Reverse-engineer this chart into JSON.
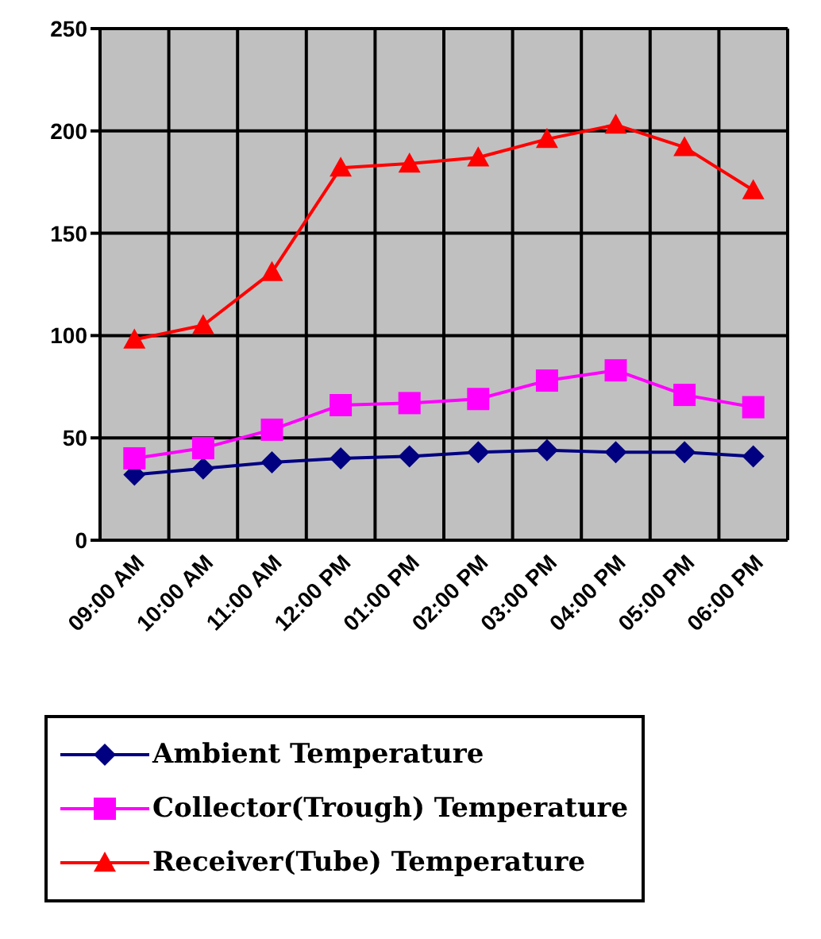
{
  "chart_data": {
    "type": "line",
    "categories": [
      "09:00 AM",
      "10:00 AM",
      "11:00 AM",
      "12:00 PM",
      "01:00 PM",
      "02:00 PM",
      "03:00 PM",
      "04:00 PM",
      "05:00 PM",
      "06:00 PM"
    ],
    "series": [
      {
        "name": "Ambient Temperature",
        "color": "#000080",
        "marker": "diamond",
        "values": [
          32,
          35,
          38,
          40,
          41,
          43,
          44,
          43,
          43,
          41
        ]
      },
      {
        "name": "Collector(Trough) Temperature",
        "color": "#ff00ff",
        "marker": "square",
        "values": [
          40,
          45,
          54,
          66,
          67,
          69,
          78,
          83,
          71,
          65
        ]
      },
      {
        "name": "Receiver(Tube) Temperature",
        "color": "#ff0000",
        "marker": "triangle",
        "values": [
          98,
          105,
          131,
          182,
          184,
          187,
          196,
          203,
          192,
          171
        ]
      }
    ],
    "ylim": [
      0,
      250
    ],
    "yticks": [
      0,
      50,
      100,
      150,
      200,
      250
    ],
    "grid": true,
    "legend": "bottom",
    "line_style": "solid"
  }
}
